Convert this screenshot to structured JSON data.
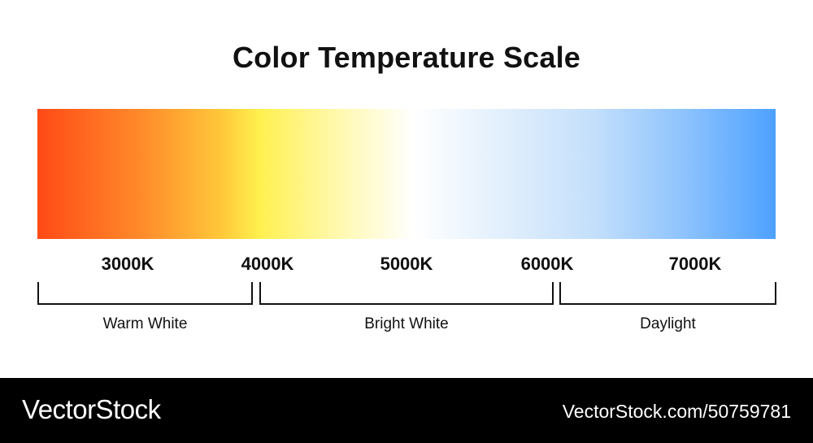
{
  "title": "Color Temperature Scale",
  "scale": {
    "ticks": [
      "3000K",
      "4000K",
      "5000K",
      "6000K",
      "7000K"
    ],
    "gradient_colors": [
      "#ff4a16",
      "#ffc83a",
      "#fff04e",
      "#ffffff",
      "#c5e0fb",
      "#4da1ff"
    ]
  },
  "groups": [
    {
      "label": "Warm White"
    },
    {
      "label": "Bright White"
    },
    {
      "label": "Daylight"
    }
  ],
  "footer": {
    "brand": "VectorStock",
    "url": "VectorStock.com/50759781"
  }
}
